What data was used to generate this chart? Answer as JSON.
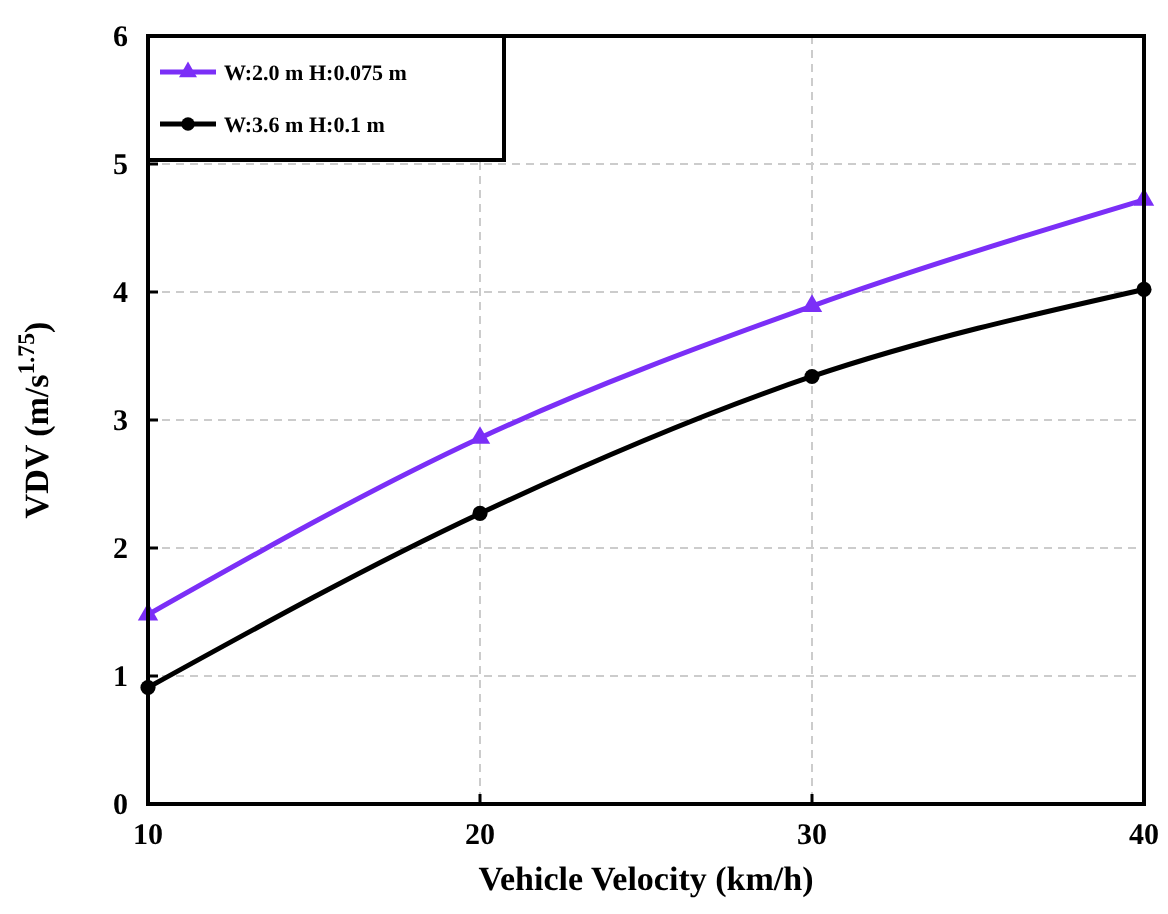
{
  "chart_data": {
    "type": "line",
    "xlabel": "Vehicle Velocity (km/h)",
    "ylabel": "VDV (m/s$^{1.75}$)",
    "x": [
      10,
      20,
      30,
      40
    ],
    "xlim": [
      10,
      40
    ],
    "xticks": [
      10,
      20,
      30,
      40
    ],
    "ylim": [
      0,
      6
    ],
    "yticks": [
      0,
      1,
      2,
      3,
      4,
      5,
      6
    ],
    "grid": true,
    "legend": "top left",
    "series": [
      {
        "name": "W:2.0 m H:0.075 m",
        "color": "#7b2ff7",
        "marker": "triangle",
        "values": [
          1.48,
          2.86,
          3.89,
          4.72
        ]
      },
      {
        "name": "W:3.6 m H:0.1 m",
        "color": "#000000",
        "marker": "circle",
        "values": [
          0.91,
          2.27,
          3.34,
          4.02
        ]
      }
    ]
  }
}
